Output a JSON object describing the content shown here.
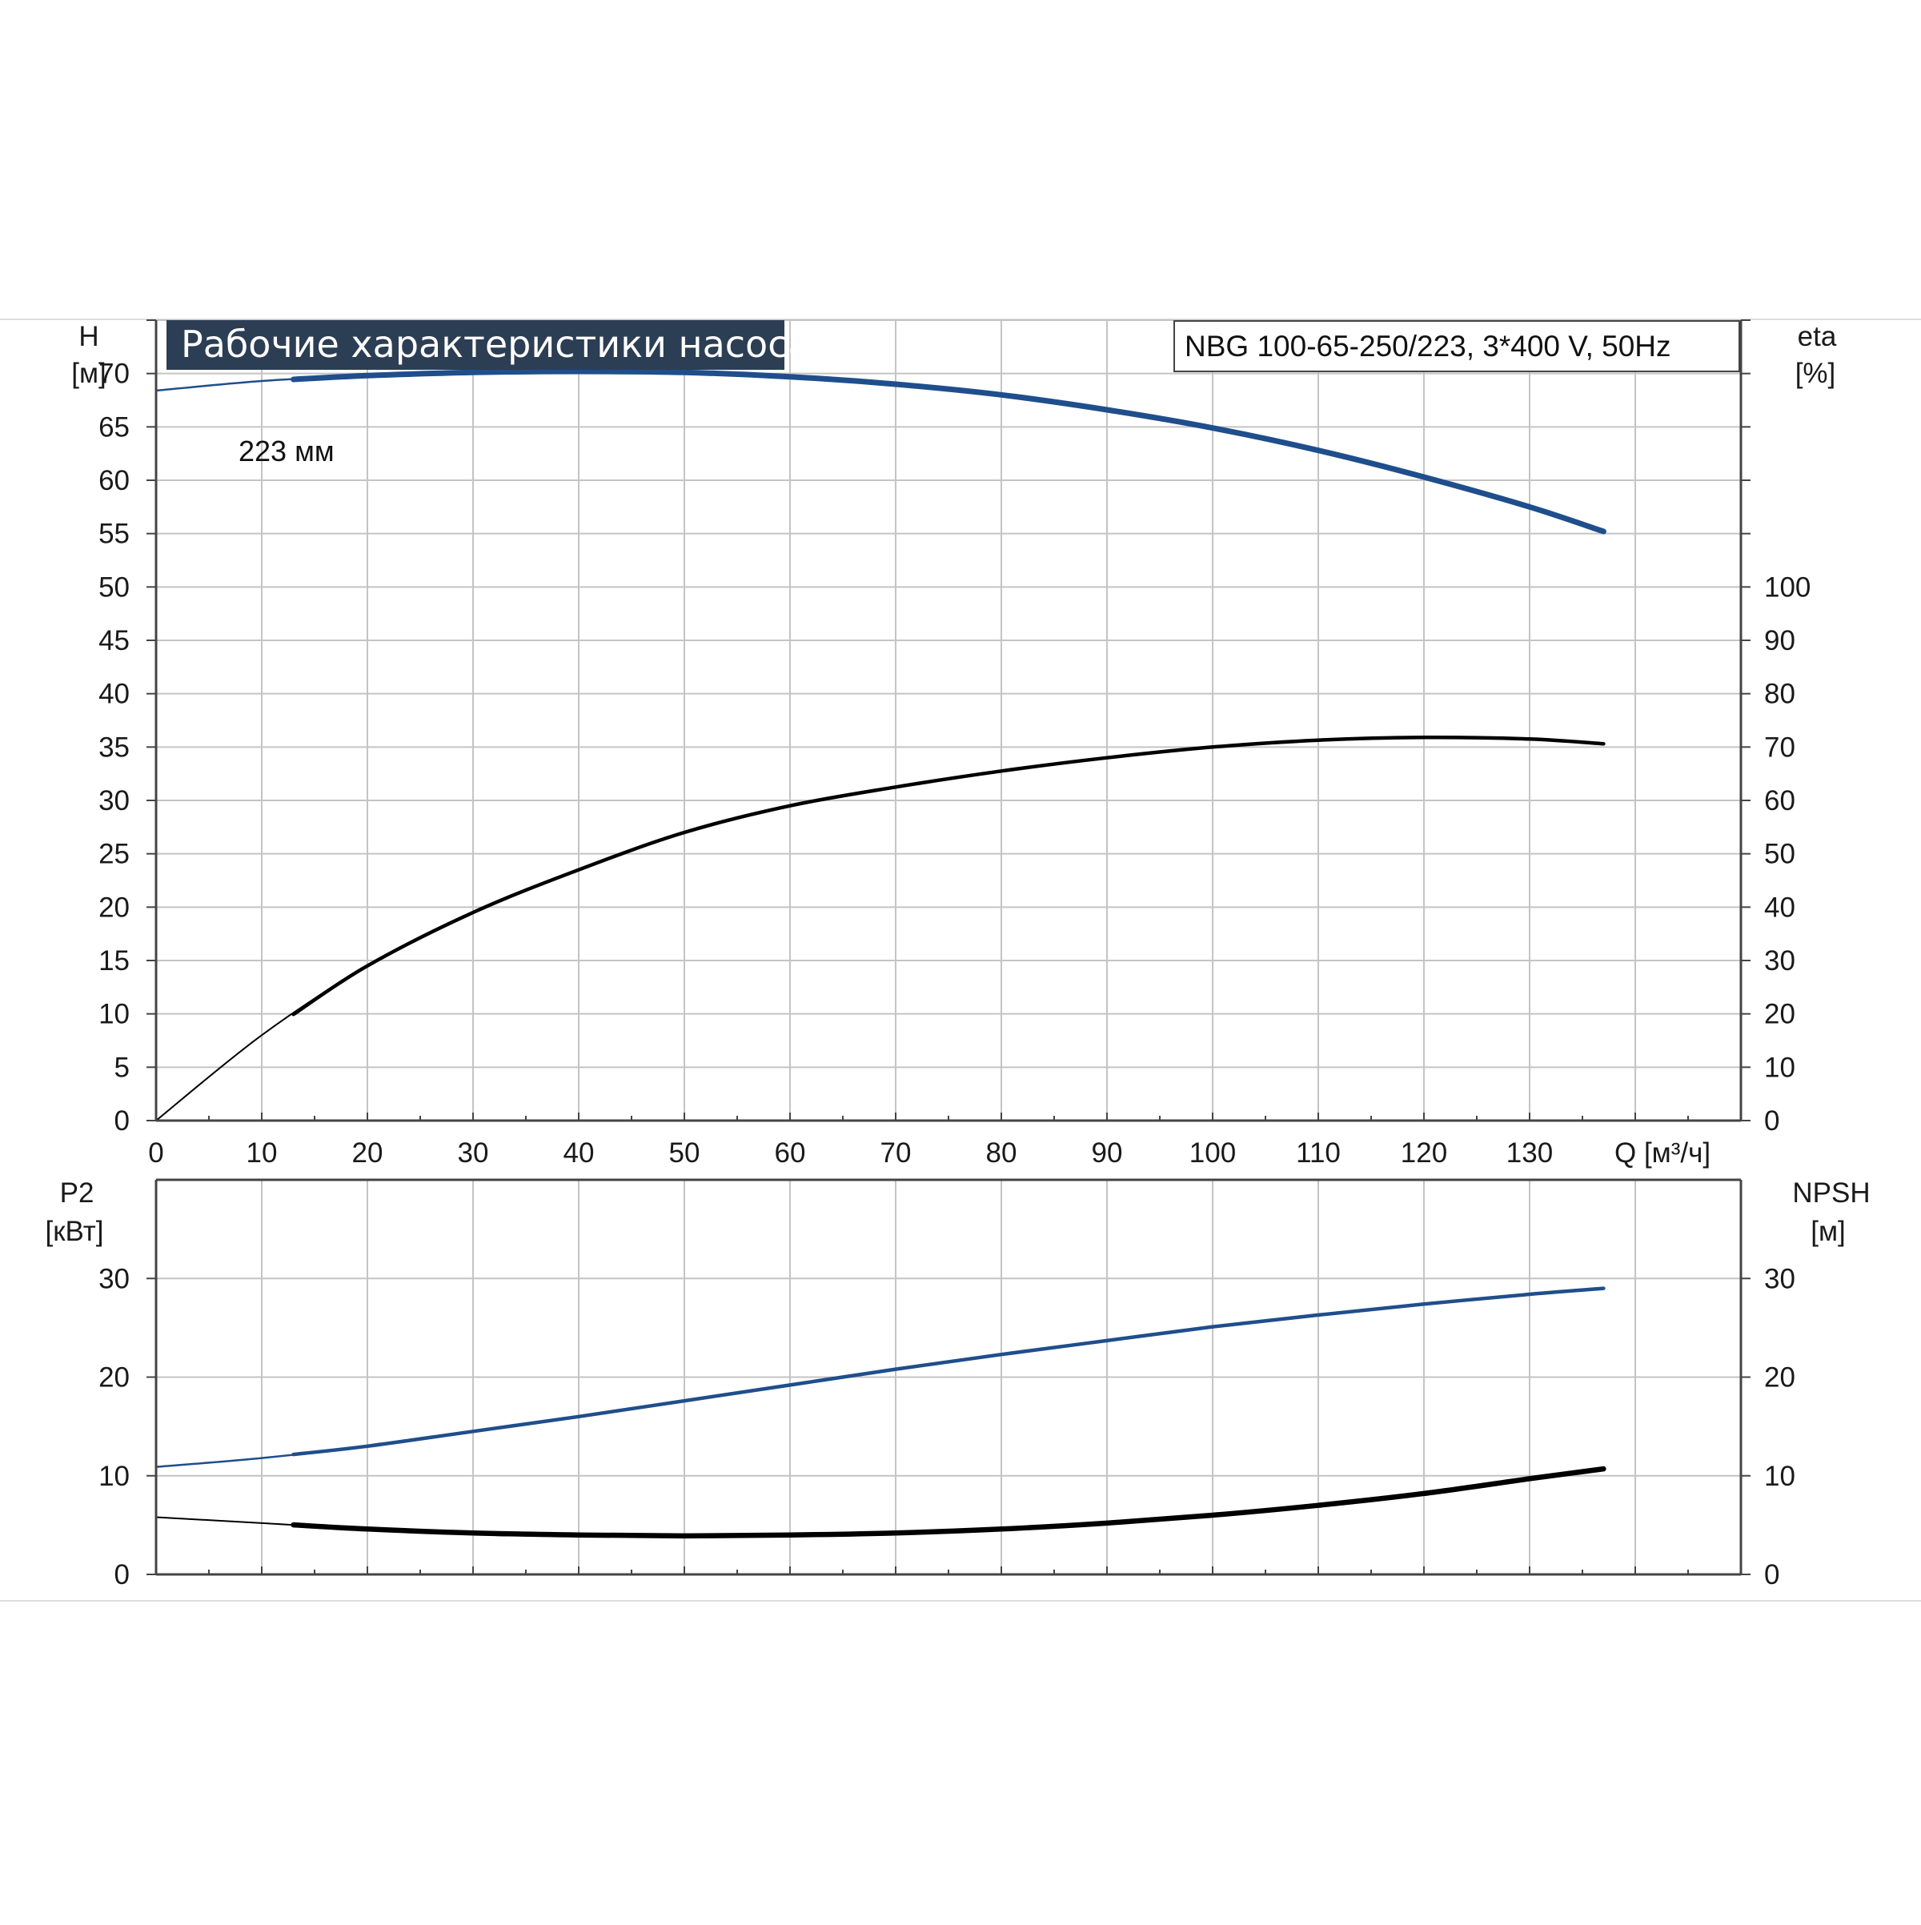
{
  "colors": {
    "grid": "#c4c4c4",
    "axis": "#444444",
    "title_bg": "#2c3e53",
    "curve_blue": "#1f4e8c",
    "curve_black": "#000000"
  },
  "header": {
    "title": "Рабочие характеристики насоса",
    "model": "NBG 100-65-250/223, 3*400 V, 50Hz"
  },
  "chart_data": [
    {
      "type": "line",
      "panel": "upper",
      "left_axis": {
        "label": "H",
        "unit": "[м]",
        "range": [
          0,
          75
        ],
        "ticks": [
          0,
          5,
          10,
          15,
          20,
          25,
          30,
          35,
          40,
          45,
          50,
          55,
          60,
          65,
          70
        ]
      },
      "right_axis": {
        "label": "eta",
        "unit": "[%]",
        "range": [
          0,
          150
        ],
        "ticks": [
          0,
          10,
          20,
          30,
          40,
          50,
          60,
          70,
          80,
          90,
          100
        ]
      },
      "x_axis": {
        "label": "Q [м³/ч]",
        "range": [
          0,
          150
        ],
        "ticks": [
          0,
          10,
          20,
          30,
          40,
          50,
          60,
          70,
          80,
          90,
          100,
          110,
          120,
          130
        ]
      },
      "grid": true,
      "series": [
        {
          "name": "223 мм",
          "axis": "left",
          "color": "curve_blue",
          "x": [
            0,
            10,
            20,
            30,
            40,
            50,
            60,
            70,
            80,
            90,
            100,
            110,
            120,
            130,
            137
          ],
          "y": [
            68.4,
            69.3,
            69.8,
            70.1,
            70.2,
            70.1,
            69.7,
            69.0,
            68.0,
            66.6,
            64.9,
            62.8,
            60.3,
            57.5,
            55.2
          ]
        },
        {
          "name": "",
          "axis": "right",
          "color": "curve_black",
          "x": [
            0,
            10,
            20,
            30,
            40,
            50,
            60,
            70,
            80,
            90,
            100,
            110,
            120,
            130,
            137
          ],
          "y": [
            0,
            16,
            29,
            39,
            47,
            54,
            59,
            62.5,
            65.5,
            68,
            70,
            71.3,
            71.8,
            71.5,
            70.6
          ]
        }
      ]
    },
    {
      "type": "line",
      "panel": "lower",
      "left_axis": {
        "label": "P2",
        "unit": "[кВт]",
        "range": [
          0,
          40
        ],
        "ticks": [
          0,
          10,
          20,
          30
        ]
      },
      "right_axis": {
        "label": "NPSH",
        "unit": "[м]",
        "range": [
          0,
          40
        ],
        "ticks": [
          0,
          10,
          20,
          30
        ]
      },
      "x_axis": {
        "range": [
          0,
          150
        ]
      },
      "grid": true,
      "series": [
        {
          "name": "",
          "axis": "left",
          "color": "curve_blue",
          "x": [
            0,
            10,
            20,
            30,
            40,
            50,
            60,
            70,
            80,
            90,
            100,
            110,
            120,
            130,
            137
          ],
          "y": [
            10.9,
            11.8,
            13,
            14.5,
            16,
            17.6,
            19.2,
            20.8,
            22.3,
            23.7,
            25.1,
            26.3,
            27.4,
            28.4,
            29
          ]
        },
        {
          "name": "",
          "axis": "right",
          "color": "curve_black",
          "x": [
            0,
            10,
            20,
            30,
            40,
            50,
            60,
            70,
            80,
            90,
            100,
            110,
            120,
            130,
            137
          ],
          "y": [
            5.8,
            5.2,
            4.6,
            4.2,
            4,
            3.9,
            4,
            4.2,
            4.6,
            5.2,
            6,
            7,
            8.2,
            9.7,
            10.7
          ]
        }
      ]
    }
  ]
}
